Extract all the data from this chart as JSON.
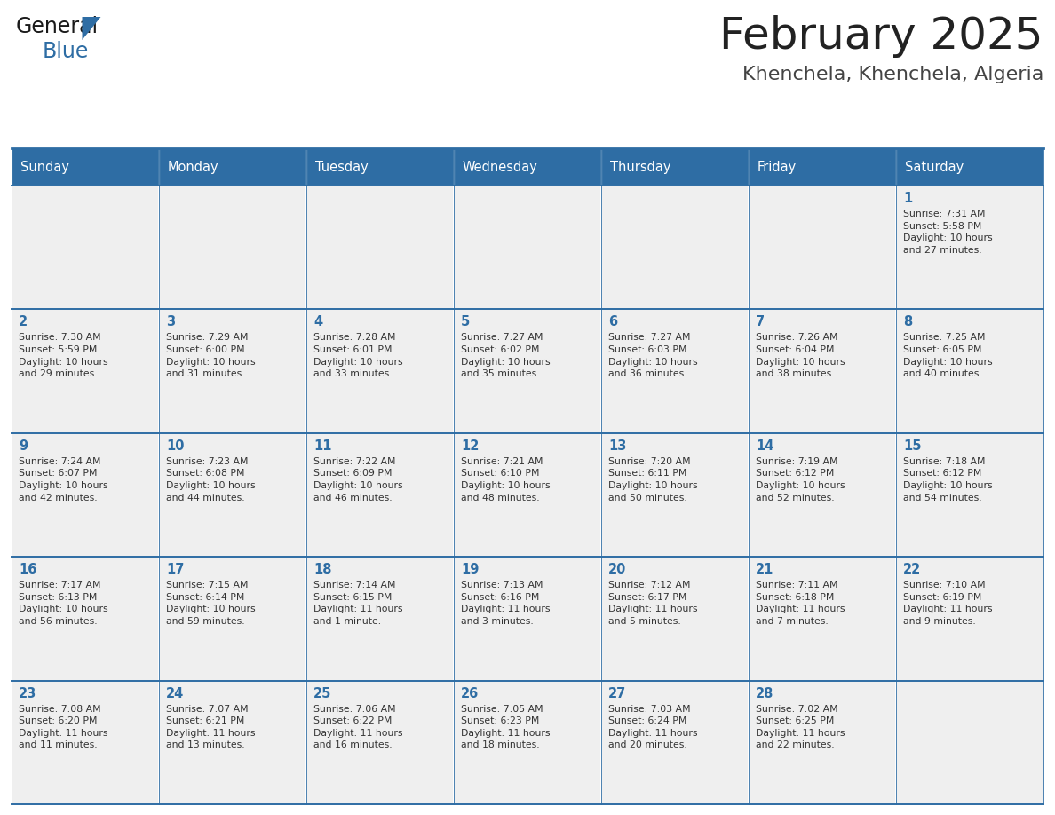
{
  "title": "February 2025",
  "subtitle": "Khenchela, Khenchela, Algeria",
  "days_of_week": [
    "Sunday",
    "Monday",
    "Tuesday",
    "Wednesday",
    "Thursday",
    "Friday",
    "Saturday"
  ],
  "header_bg": "#2E6DA4",
  "header_text": "#FFFFFF",
  "cell_bg": "#EFEFEF",
  "border_color": "#2E6DA4",
  "border_color_light": "#AAAAAA",
  "day_num_color": "#2E6DA4",
  "cell_text_color": "#333333",
  "title_color": "#222222",
  "subtitle_color": "#444444",
  "logo_general_color": "#1a1a1a",
  "logo_blue_color": "#2E6DA4",
  "num_rows": 5,
  "num_cols": 7,
  "calendar_data": [
    [
      "",
      "",
      "",
      "",
      "",
      "",
      "1\nSunrise: 7:31 AM\nSunset: 5:58 PM\nDaylight: 10 hours\nand 27 minutes."
    ],
    [
      "2\nSunrise: 7:30 AM\nSunset: 5:59 PM\nDaylight: 10 hours\nand 29 minutes.",
      "3\nSunrise: 7:29 AM\nSunset: 6:00 PM\nDaylight: 10 hours\nand 31 minutes.",
      "4\nSunrise: 7:28 AM\nSunset: 6:01 PM\nDaylight: 10 hours\nand 33 minutes.",
      "5\nSunrise: 7:27 AM\nSunset: 6:02 PM\nDaylight: 10 hours\nand 35 minutes.",
      "6\nSunrise: 7:27 AM\nSunset: 6:03 PM\nDaylight: 10 hours\nand 36 minutes.",
      "7\nSunrise: 7:26 AM\nSunset: 6:04 PM\nDaylight: 10 hours\nand 38 minutes.",
      "8\nSunrise: 7:25 AM\nSunset: 6:05 PM\nDaylight: 10 hours\nand 40 minutes."
    ],
    [
      "9\nSunrise: 7:24 AM\nSunset: 6:07 PM\nDaylight: 10 hours\nand 42 minutes.",
      "10\nSunrise: 7:23 AM\nSunset: 6:08 PM\nDaylight: 10 hours\nand 44 minutes.",
      "11\nSunrise: 7:22 AM\nSunset: 6:09 PM\nDaylight: 10 hours\nand 46 minutes.",
      "12\nSunrise: 7:21 AM\nSunset: 6:10 PM\nDaylight: 10 hours\nand 48 minutes.",
      "13\nSunrise: 7:20 AM\nSunset: 6:11 PM\nDaylight: 10 hours\nand 50 minutes.",
      "14\nSunrise: 7:19 AM\nSunset: 6:12 PM\nDaylight: 10 hours\nand 52 minutes.",
      "15\nSunrise: 7:18 AM\nSunset: 6:12 PM\nDaylight: 10 hours\nand 54 minutes."
    ],
    [
      "16\nSunrise: 7:17 AM\nSunset: 6:13 PM\nDaylight: 10 hours\nand 56 minutes.",
      "17\nSunrise: 7:15 AM\nSunset: 6:14 PM\nDaylight: 10 hours\nand 59 minutes.",
      "18\nSunrise: 7:14 AM\nSunset: 6:15 PM\nDaylight: 11 hours\nand 1 minute.",
      "19\nSunrise: 7:13 AM\nSunset: 6:16 PM\nDaylight: 11 hours\nand 3 minutes.",
      "20\nSunrise: 7:12 AM\nSunset: 6:17 PM\nDaylight: 11 hours\nand 5 minutes.",
      "21\nSunrise: 7:11 AM\nSunset: 6:18 PM\nDaylight: 11 hours\nand 7 minutes.",
      "22\nSunrise: 7:10 AM\nSunset: 6:19 PM\nDaylight: 11 hours\nand 9 minutes."
    ],
    [
      "23\nSunrise: 7:08 AM\nSunset: 6:20 PM\nDaylight: 11 hours\nand 11 minutes.",
      "24\nSunrise: 7:07 AM\nSunset: 6:21 PM\nDaylight: 11 hours\nand 13 minutes.",
      "25\nSunrise: 7:06 AM\nSunset: 6:22 PM\nDaylight: 11 hours\nand 16 minutes.",
      "26\nSunrise: 7:05 AM\nSunset: 6:23 PM\nDaylight: 11 hours\nand 18 minutes.",
      "27\nSunrise: 7:03 AM\nSunset: 6:24 PM\nDaylight: 11 hours\nand 20 minutes.",
      "28\nSunrise: 7:02 AM\nSunset: 6:25 PM\nDaylight: 11 hours\nand 22 minutes.",
      ""
    ]
  ],
  "fig_width": 11.88,
  "fig_height": 9.18,
  "dpi": 100
}
